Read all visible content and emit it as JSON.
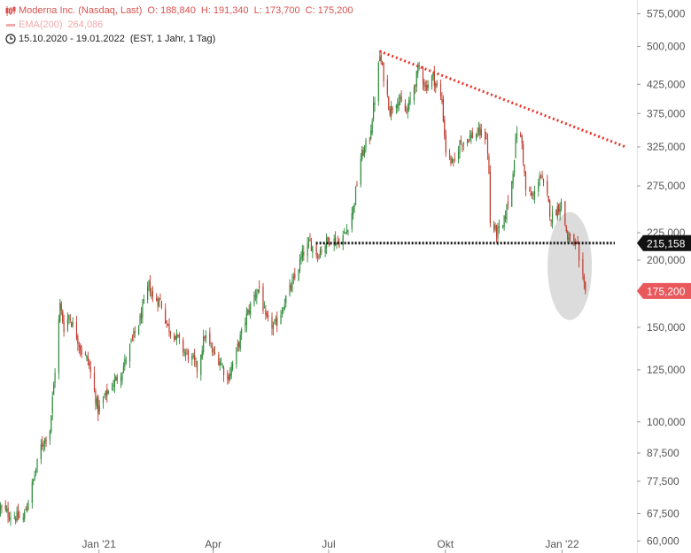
{
  "legend": {
    "instrument": "Moderna Inc. (Nasdaq, Last)",
    "open": "O: 188,840",
    "high": "H: 191,340",
    "low": "L: 173,700",
    "close": "C: 175,200",
    "ema_label": "EMA(200)",
    "ema_value": "264,086",
    "period": "15.10.2020 - 19.01.2022",
    "period_detail": "(EST, 1 Jahr, 1 Tag)",
    "icons": [
      "candlestick-icon",
      "line-icon",
      "clock-icon"
    ]
  },
  "chart_data": {
    "type": "candlestick",
    "scale": "log",
    "ylim": [
      57,
      610
    ],
    "x_range": [
      "2020-10-15",
      "2022-03-01"
    ],
    "x_ticks": [
      {
        "date": "2021-01-01",
        "label": "Jan '21"
      },
      {
        "date": "2021-04-01",
        "label": "Apr"
      },
      {
        "date": "2021-07-01",
        "label": "Jul"
      },
      {
        "date": "2021-10-01",
        "label": "Okt"
      },
      {
        "date": "2022-01-01",
        "label": "Jan '22"
      }
    ],
    "y_ticks": [
      {
        "value": 575,
        "label": "575,000"
      },
      {
        "value": 500,
        "label": "500,000"
      },
      {
        "value": 425,
        "label": "425,000"
      },
      {
        "value": 375,
        "label": "375,000"
      },
      {
        "value": 325,
        "label": "325,000"
      },
      {
        "value": 275,
        "label": "275,000"
      },
      {
        "value": 225,
        "label": "225,000"
      },
      {
        "value": 200,
        "label": "200,000"
      },
      {
        "value": 150,
        "label": "150,000"
      },
      {
        "value": 125,
        "label": "125,000"
      },
      {
        "value": 100,
        "label": "100,000"
      },
      {
        "value": 87.5,
        "label": "87,500"
      },
      {
        "value": 77.5,
        "label": "77,500"
      },
      {
        "value": 67.5,
        "label": "67,500"
      },
      {
        "value": 60,
        "label": "60,000"
      }
    ],
    "badges": [
      {
        "value": 215.158,
        "label": "215,158",
        "color": "#111111"
      },
      {
        "value": 175.2,
        "label": "175,200",
        "color": "#e8585c"
      }
    ],
    "trendline": {
      "start": [
        "2021-08-10",
        490
      ],
      "end": [
        "2022-02-20",
        325
      ],
      "color": "#e8352a",
      "style": "dotted"
    },
    "support": {
      "start": [
        "2021-06-21",
        215.158
      ],
      "end": [
        "2022-03-01",
        215.158
      ],
      "color": "#111111",
      "style": "dotted"
    },
    "highlight": {
      "center": [
        "2022-01-07",
        195
      ],
      "color": "#dcdcdc"
    },
    "colors": {
      "up": "#2e8b3a",
      "down": "#c0392b"
    },
    "price_path": [
      [
        "2020-10-15",
        69
      ],
      [
        "2020-10-23",
        67
      ],
      [
        "2020-11-02",
        66
      ],
      [
        "2020-11-09",
        76
      ],
      [
        "2020-11-16",
        90
      ],
      [
        "2020-11-23",
        97
      ],
      [
        "2020-11-27",
        125
      ],
      [
        "2020-12-01",
        165
      ],
      [
        "2020-12-04",
        150
      ],
      [
        "2020-12-08",
        158
      ],
      [
        "2020-12-14",
        145
      ],
      [
        "2020-12-18",
        135
      ],
      [
        "2020-12-23",
        130
      ],
      [
        "2020-12-31",
        105
      ],
      [
        "2021-01-06",
        112
      ],
      [
        "2021-01-12",
        118
      ],
      [
        "2021-01-19",
        125
      ],
      [
        "2021-01-26",
        140
      ],
      [
        "2021-02-02",
        155
      ],
      [
        "2021-02-09",
        180
      ],
      [
        "2021-02-12",
        170
      ],
      [
        "2021-02-18",
        168
      ],
      [
        "2021-02-24",
        150
      ],
      [
        "2021-03-02",
        145
      ],
      [
        "2021-03-09",
        135
      ],
      [
        "2021-03-16",
        130
      ],
      [
        "2021-03-19",
        125
      ],
      [
        "2021-03-25",
        145
      ],
      [
        "2021-03-31",
        135
      ],
      [
        "2021-04-06",
        130
      ],
      [
        "2021-04-12",
        120
      ],
      [
        "2021-04-19",
        135
      ],
      [
        "2021-04-26",
        155
      ],
      [
        "2021-05-03",
        172
      ],
      [
        "2021-05-07",
        178
      ],
      [
        "2021-05-12",
        155
      ],
      [
        "2021-05-19",
        150
      ],
      [
        "2021-05-24",
        160
      ],
      [
        "2021-05-28",
        170
      ],
      [
        "2021-06-04",
        185
      ],
      [
        "2021-06-10",
        205
      ],
      [
        "2021-06-16",
        215
      ],
      [
        "2021-06-22",
        205
      ],
      [
        "2021-06-28",
        215
      ],
      [
        "2021-07-02",
        220
      ],
      [
        "2021-07-08",
        215
      ],
      [
        "2021-07-14",
        225
      ],
      [
        "2021-07-20",
        250
      ],
      [
        "2021-07-26",
        310
      ],
      [
        "2021-08-02",
        340
      ],
      [
        "2021-08-06",
        400
      ],
      [
        "2021-08-10",
        480
      ],
      [
        "2021-08-13",
        440
      ],
      [
        "2021-08-18",
        380
      ],
      [
        "2021-08-24",
        400
      ],
      [
        "2021-08-31",
        375
      ],
      [
        "2021-09-07",
        430
      ],
      [
        "2021-09-10",
        460
      ],
      [
        "2021-09-15",
        420
      ],
      [
        "2021-09-21",
        440
      ],
      [
        "2021-09-24",
        420
      ],
      [
        "2021-09-28",
        395
      ],
      [
        "2021-10-01",
        320
      ],
      [
        "2021-10-07",
        300
      ],
      [
        "2021-10-12",
        330
      ],
      [
        "2021-10-20",
        340
      ],
      [
        "2021-10-28",
        345
      ],
      [
        "2021-11-02",
        340
      ],
      [
        "2021-11-04",
        290
      ],
      [
        "2021-11-05",
        235
      ],
      [
        "2021-11-10",
        225
      ],
      [
        "2021-11-15",
        230
      ],
      [
        "2021-11-22",
        280
      ],
      [
        "2021-11-26",
        350
      ],
      [
        "2021-11-30",
        330
      ],
      [
        "2021-12-03",
        270
      ],
      [
        "2021-12-09",
        260
      ],
      [
        "2021-12-14",
        290
      ],
      [
        "2021-12-20",
        260
      ],
      [
        "2021-12-23",
        240
      ],
      [
        "2021-12-28",
        250
      ],
      [
        "2021-12-31",
        255
      ],
      [
        "2022-01-05",
        220
      ],
      [
        "2022-01-10",
        215
      ],
      [
        "2022-01-13",
        210
      ],
      [
        "2022-01-14",
        195
      ],
      [
        "2022-01-18",
        180
      ],
      [
        "2022-01-19",
        175.2
      ]
    ]
  }
}
